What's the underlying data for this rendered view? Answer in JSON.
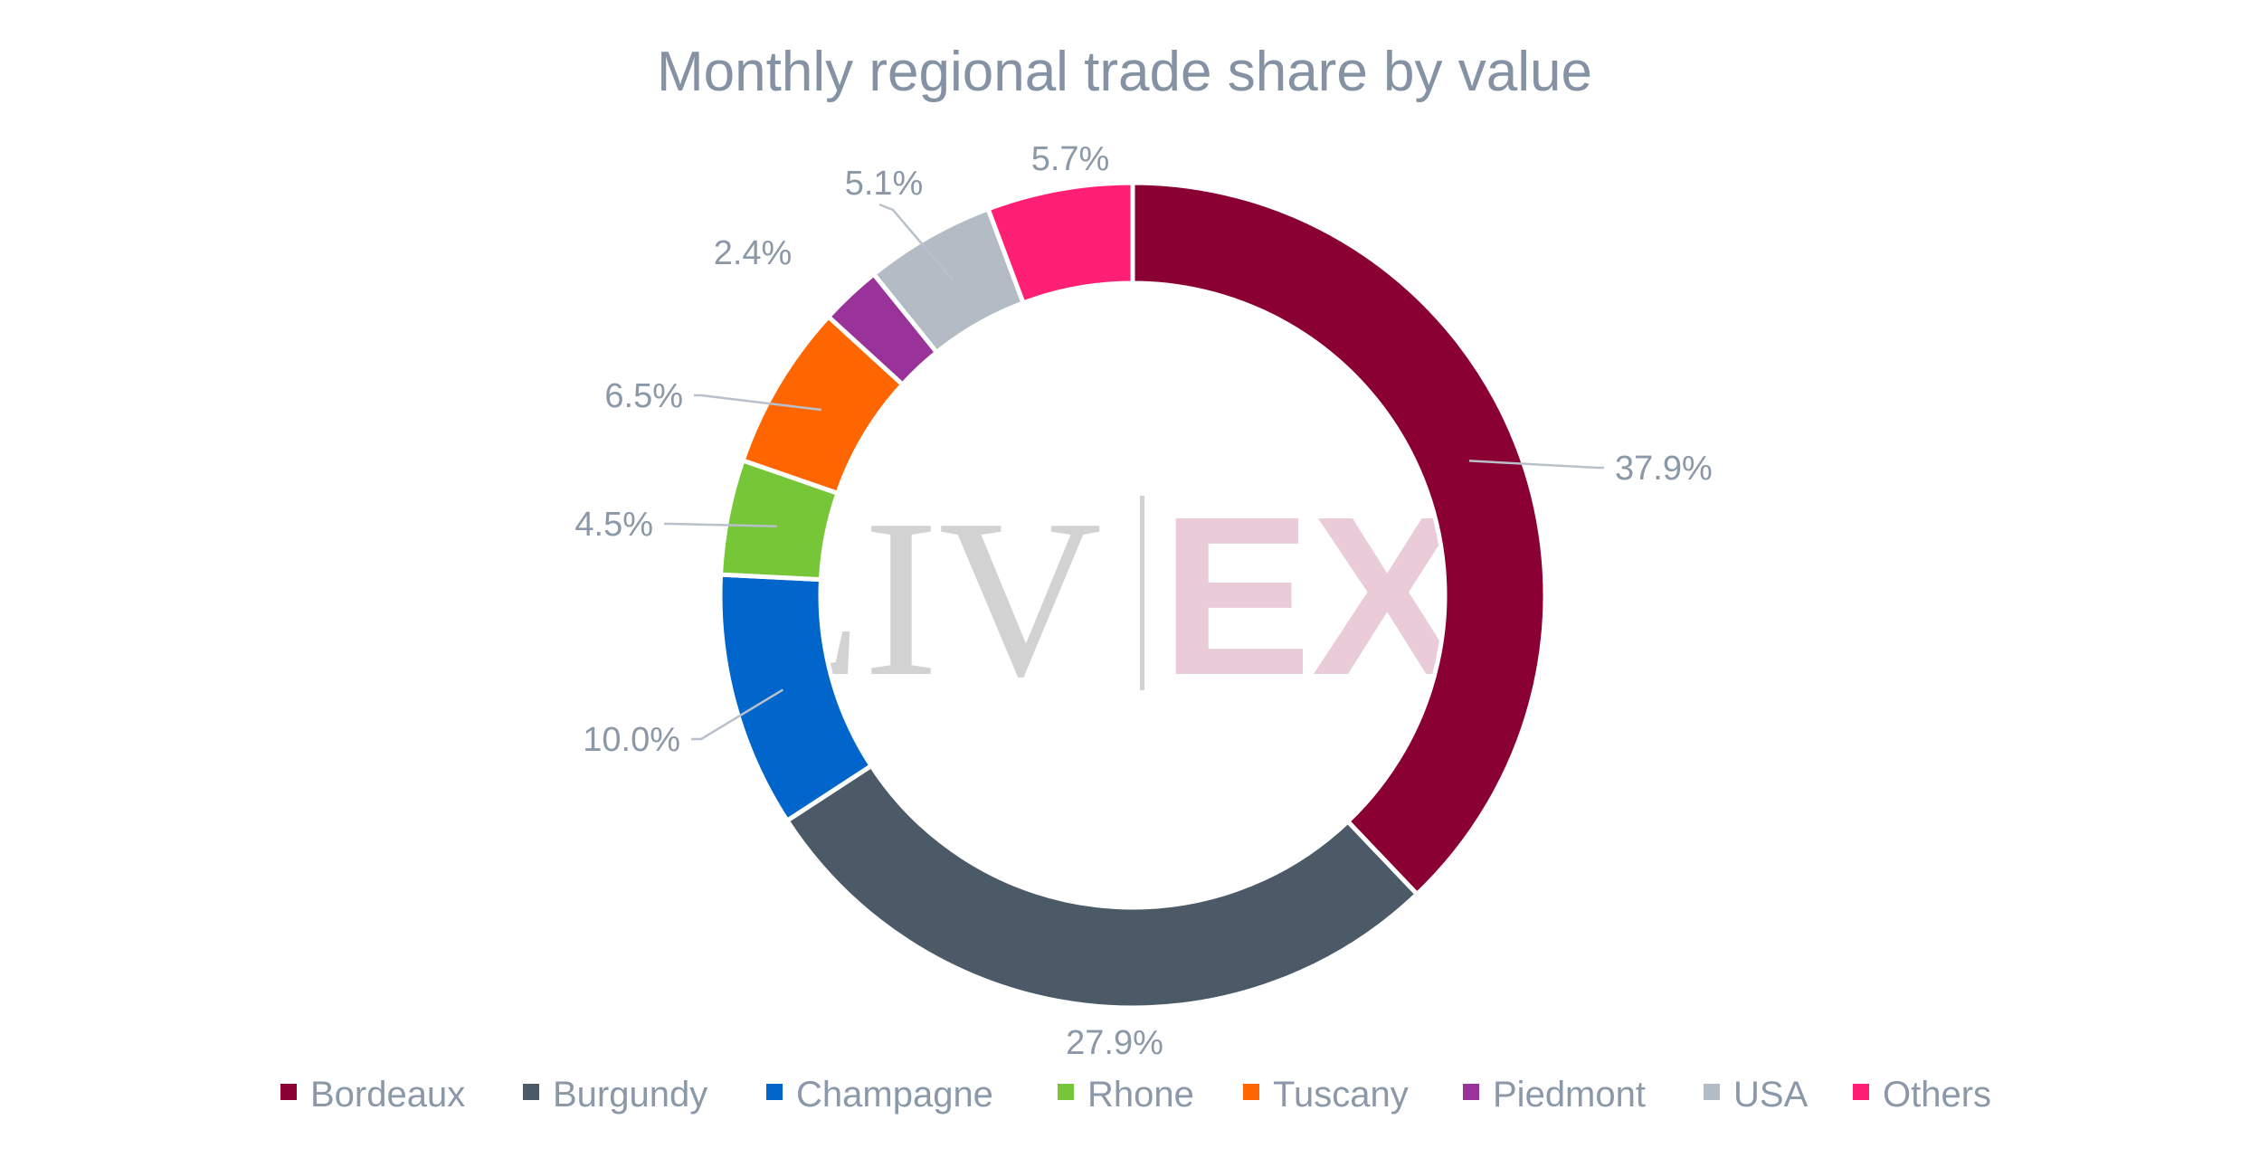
{
  "watermark": {
    "left": "LIV",
    "right": "EX"
  },
  "chart_data": {
    "type": "pie",
    "variant": "donut",
    "title": "Monthly regional trade share by value",
    "legend_position": "bottom",
    "slices": [
      {
        "name": "Bordeaux",
        "value": 37.9,
        "label": "37.9%",
        "color": "#8a0033"
      },
      {
        "name": "Burgundy",
        "value": 27.9,
        "label": "27.9%",
        "color": "#4b5a66"
      },
      {
        "name": "Champagne",
        "value": 10.0,
        "label": "10.0%",
        "color": "#0066cc"
      },
      {
        "name": "Rhone",
        "value": 4.5,
        "label": "4.5%",
        "color": "#76c637"
      },
      {
        "name": "Tuscany",
        "value": 6.5,
        "label": "6.5%",
        "color": "#ff6600"
      },
      {
        "name": "Piedmont",
        "value": 2.4,
        "label": "2.4%",
        "color": "#993399"
      },
      {
        "name": "USA",
        "value": 5.1,
        "label": "5.1%",
        "color": "#b3bcc4"
      },
      {
        "name": "Others",
        "value": 5.7,
        "label": "5.7%",
        "color": "#ff1f75"
      }
    ]
  }
}
